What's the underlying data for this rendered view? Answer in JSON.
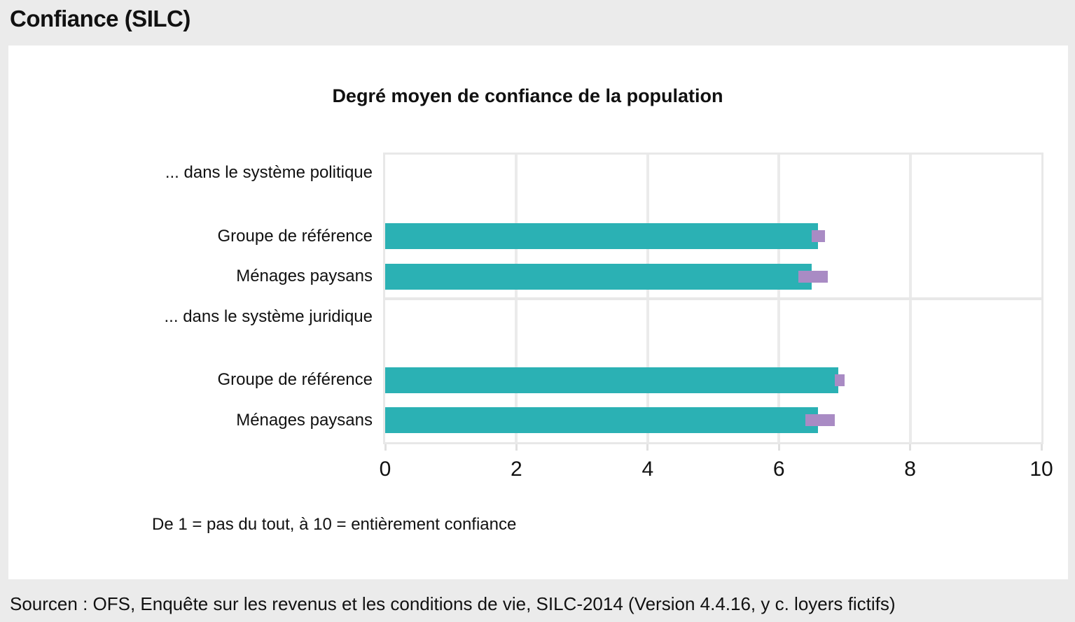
{
  "page": {
    "title": "Confiance (SILC)",
    "source": "Sourcen : OFS, Enquête sur les revenus et les conditions de vie, SILC-2014 (Version 4.4.16, y c. loyers fictifs)"
  },
  "chart_data": {
    "type": "bar",
    "orientation": "horizontal",
    "title": "Degré moyen de confiance de la population",
    "footnote": "De 1 = pas du tout, à 10 = entièrement confiance",
    "xlabel": "",
    "ylabel": "",
    "xlim": [
      0,
      10
    ],
    "xticks": [
      0,
      2,
      4,
      6,
      8,
      10
    ],
    "grid": true,
    "legend": "none",
    "colors": {
      "bar": "#2bb1b4",
      "ci_marker": "#a98bc4",
      "gridline": "#ebebeb",
      "background_page": "#ebebeb",
      "panel": "#ffffff"
    },
    "sections": [
      {
        "header": "... dans le système politique",
        "rows": [
          {
            "label": "Groupe de référence",
            "value": 6.6,
            "ci": [
              6.5,
              6.7
            ]
          },
          {
            "label": "Ménages paysans",
            "value": 6.5,
            "ci": [
              6.3,
              6.75
            ]
          }
        ]
      },
      {
        "header": "... dans le système juridique",
        "rows": [
          {
            "label": "Groupe de référence",
            "value": 6.9,
            "ci": [
              6.85,
              7.0
            ]
          },
          {
            "label": "Ménages paysans",
            "value": 6.6,
            "ci": [
              6.4,
              6.85
            ]
          }
        ]
      }
    ]
  }
}
